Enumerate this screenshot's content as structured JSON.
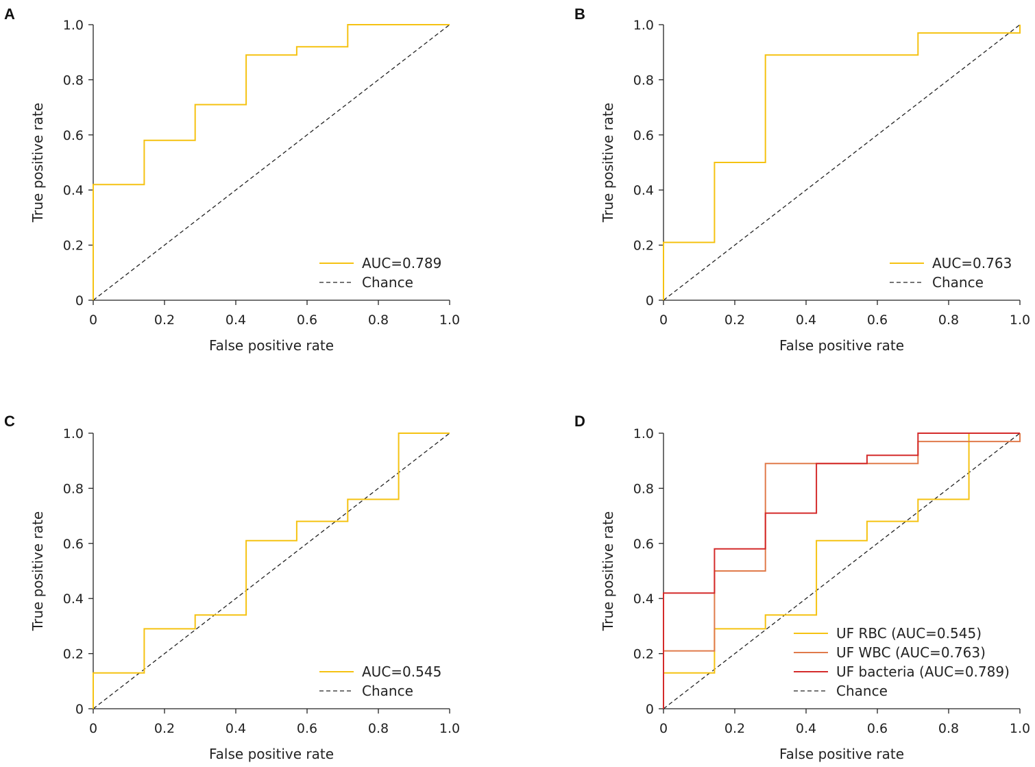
{
  "chart_data": [
    {
      "panel": "A",
      "type": "line",
      "xlabel": "False positive rate",
      "ylabel": "True positive rate",
      "xlim": [
        0,
        1
      ],
      "ylim": [
        0,
        1
      ],
      "xticks": [
        "0",
        "0.2",
        "0.4",
        "0.6",
        "0.8",
        "1.0"
      ],
      "yticks": [
        "0",
        "0.2",
        "0.4",
        "0.6",
        "0.8",
        "1.0"
      ],
      "legend_position": "bottom-right",
      "series": [
        {
          "name": "AUC=0.789",
          "color": "#f5c211",
          "style": "step",
          "fpr": [
            0,
            0,
            0.143,
            0.143,
            0.286,
            0.286,
            0.429,
            0.429,
            0.571,
            0.571,
            0.714,
            0.714,
            1.0
          ],
          "tpr": [
            0,
            0.42,
            0.42,
            0.58,
            0.58,
            0.71,
            0.71,
            0.89,
            0.89,
            0.92,
            0.92,
            1.0,
            1.0
          ]
        },
        {
          "name": "Chance",
          "color": "#222222",
          "style": "dashed",
          "fpr": [
            0,
            1
          ],
          "tpr": [
            0,
            1
          ]
        }
      ]
    },
    {
      "panel": "B",
      "type": "line",
      "xlabel": "False positive rate",
      "ylabel": "True positive rate",
      "xlim": [
        0,
        1
      ],
      "ylim": [
        0,
        1
      ],
      "xticks": [
        "0",
        "0.2",
        "0.4",
        "0.6",
        "0.8",
        "1.0"
      ],
      "yticks": [
        "0",
        "0.2",
        "0.4",
        "0.6",
        "0.8",
        "1.0"
      ],
      "legend_position": "bottom-right",
      "series": [
        {
          "name": "AUC=0.763",
          "color": "#f5c211",
          "style": "step",
          "fpr": [
            0,
            0,
            0.143,
            0.143,
            0.286,
            0.286,
            0.714,
            0.714,
            1.0,
            1.0
          ],
          "tpr": [
            0,
            0.21,
            0.21,
            0.5,
            0.5,
            0.89,
            0.89,
            0.97,
            0.97,
            1.0
          ]
        },
        {
          "name": "Chance",
          "color": "#222222",
          "style": "dashed",
          "fpr": [
            0,
            1
          ],
          "tpr": [
            0,
            1
          ]
        }
      ]
    },
    {
      "panel": "C",
      "type": "line",
      "xlabel": "False positive rate",
      "ylabel": "True positive rate",
      "xlim": [
        0,
        1
      ],
      "ylim": [
        0,
        1
      ],
      "xticks": [
        "0",
        "0.2",
        "0.4",
        "0.6",
        "0.8",
        "1.0"
      ],
      "yticks": [
        "0",
        "0.2",
        "0.4",
        "0.6",
        "0.8",
        "1.0"
      ],
      "legend_position": "bottom-right",
      "series": [
        {
          "name": "AUC=0.545",
          "color": "#f5c211",
          "style": "step",
          "fpr": [
            0,
            0,
            0.143,
            0.143,
            0.286,
            0.286,
            0.429,
            0.429,
            0.571,
            0.571,
            0.714,
            0.714,
            0.857,
            0.857,
            1.0
          ],
          "tpr": [
            0,
            0.13,
            0.13,
            0.29,
            0.29,
            0.34,
            0.34,
            0.61,
            0.61,
            0.68,
            0.68,
            0.76,
            0.76,
            1.0,
            1.0
          ]
        },
        {
          "name": "Chance",
          "color": "#222222",
          "style": "dashed",
          "fpr": [
            0,
            1
          ],
          "tpr": [
            0,
            1
          ]
        }
      ]
    },
    {
      "panel": "D",
      "type": "line",
      "xlabel": "False positive rate",
      "ylabel": "True positive rate",
      "xlim": [
        0,
        1
      ],
      "ylim": [
        0,
        1
      ],
      "xticks": [
        "0",
        "0.2",
        "0.4",
        "0.6",
        "0.8",
        "1.0"
      ],
      "yticks": [
        "0",
        "0.2",
        "0.4",
        "0.6",
        "0.8",
        "1.0"
      ],
      "legend_position": "bottom-right",
      "series": [
        {
          "name": "UF RBC (AUC=0.545)",
          "color": "#f5c211",
          "style": "step",
          "fpr": [
            0,
            0,
            0.143,
            0.143,
            0.286,
            0.286,
            0.429,
            0.429,
            0.571,
            0.571,
            0.714,
            0.714,
            0.857,
            0.857,
            1.0
          ],
          "tpr": [
            0,
            0.13,
            0.13,
            0.29,
            0.29,
            0.34,
            0.34,
            0.61,
            0.61,
            0.68,
            0.68,
            0.76,
            0.76,
            1.0,
            1.0
          ]
        },
        {
          "name": "UF WBC (AUC=0.763)",
          "color": "#e07a4a",
          "style": "step",
          "fpr": [
            0,
            0,
            0.143,
            0.143,
            0.286,
            0.286,
            0.714,
            0.714,
            1.0,
            1.0
          ],
          "tpr": [
            0,
            0.21,
            0.21,
            0.5,
            0.5,
            0.89,
            0.89,
            0.97,
            0.97,
            1.0
          ]
        },
        {
          "name": "UF bacteria (AUC=0.789)",
          "color": "#d42a2a",
          "style": "step",
          "fpr": [
            0,
            0,
            0.143,
            0.143,
            0.286,
            0.286,
            0.429,
            0.429,
            0.571,
            0.571,
            0.714,
            0.714,
            1.0
          ],
          "tpr": [
            0,
            0.42,
            0.42,
            0.58,
            0.58,
            0.71,
            0.71,
            0.89,
            0.89,
            0.92,
            0.92,
            1.0,
            1.0
          ]
        },
        {
          "name": "Chance",
          "color": "#222222",
          "style": "dashed",
          "fpr": [
            0,
            1
          ],
          "tpr": [
            0,
            1
          ]
        }
      ]
    }
  ]
}
